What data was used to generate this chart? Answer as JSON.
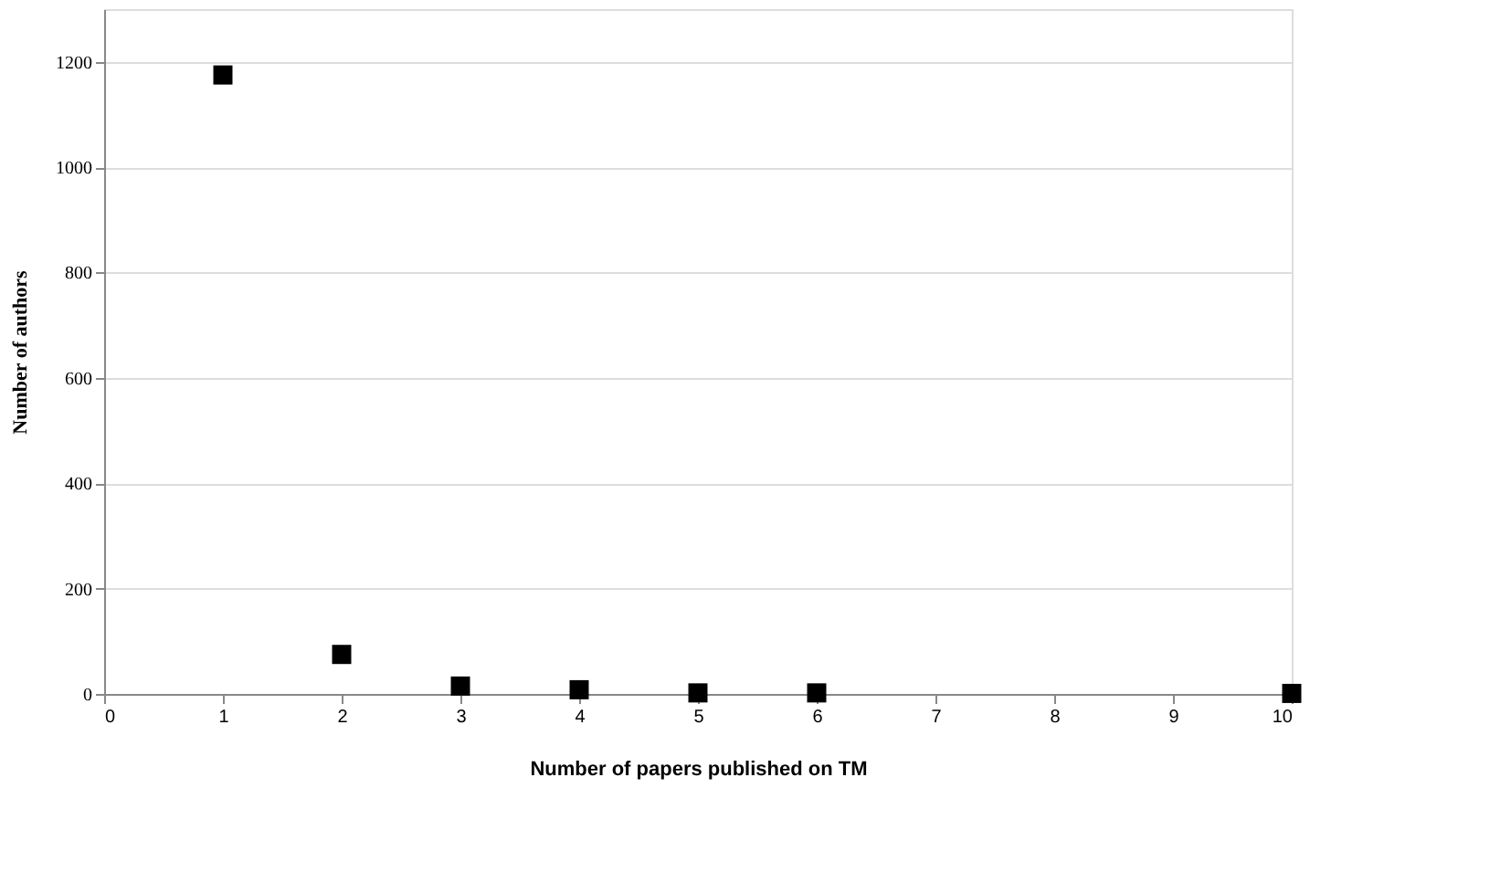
{
  "chart_data": {
    "type": "scatter",
    "xlabel": "Number of papers published on TM",
    "ylabel": "Number of authors",
    "x": [
      1,
      2,
      3,
      4,
      5,
      6,
      10
    ],
    "series": [
      {
        "color": "#000000",
        "values": [
          1175,
          75,
          15,
          8,
          2,
          2,
          1
        ]
      }
    ],
    "marker": "square",
    "grid": "y",
    "legend": false,
    "xlim": [
      0,
      10
    ],
    "xticks": [
      0,
      1,
      2,
      3,
      4,
      5,
      6,
      7,
      8,
      9,
      10
    ],
    "ylim": [
      0,
      1300
    ],
    "yticks": [
      0,
      200,
      400,
      600,
      800,
      1000,
      1200
    ]
  }
}
